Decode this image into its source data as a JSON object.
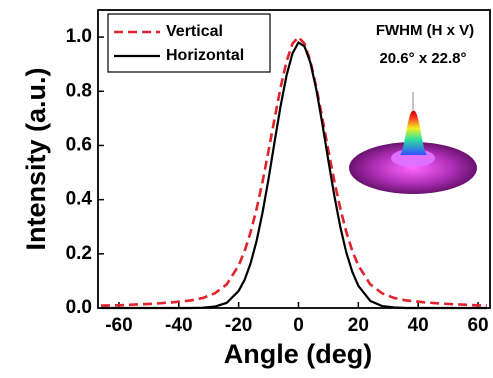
{
  "chart_data": {
    "type": "line",
    "x_label": "Angle (deg)",
    "y_label": "Intensity (a.u.)",
    "annotations": [
      "FWHM (H x V)",
      "20.6° x 22.8°"
    ],
    "x": [
      -66,
      -60,
      -54,
      -48,
      -42,
      -36,
      -32,
      -28,
      -24,
      -20,
      -18,
      -16,
      -14,
      -12,
      -10,
      -8,
      -6,
      -4,
      -2,
      0,
      2,
      4,
      6,
      8,
      10,
      12,
      14,
      16,
      18,
      20,
      24,
      28,
      32,
      36,
      42,
      48,
      54,
      60,
      63
    ],
    "series": [
      {
        "name": "Vertical",
        "color": "#e0242b",
        "dash": true,
        "values": [
          0.009,
          0.01,
          0.013,
          0.016,
          0.021,
          0.028,
          0.037,
          0.054,
          0.087,
          0.157,
          0.21,
          0.28,
          0.366,
          0.467,
          0.581,
          0.699,
          0.813,
          0.91,
          0.976,
          1.0,
          0.976,
          0.91,
          0.813,
          0.699,
          0.581,
          0.467,
          0.366,
          0.28,
          0.21,
          0.157,
          0.087,
          0.054,
          0.037,
          0.028,
          0.021,
          0.016,
          0.013,
          0.01,
          0.009
        ]
      },
      {
        "name": "Horizontal",
        "color": "#000000",
        "dash": false,
        "values": [
          0,
          0,
          0,
          0,
          0,
          0,
          0.001,
          0.005,
          0.019,
          0.063,
          0.104,
          0.165,
          0.248,
          0.353,
          0.477,
          0.613,
          0.744,
          0.858,
          0.94,
          0.98,
          0.966,
          0.905,
          0.804,
          0.678,
          0.543,
          0.413,
          0.298,
          0.204,
          0.133,
          0.082,
          0.026,
          0.007,
          0.002,
          0,
          0,
          0,
          0,
          0,
          0
        ]
      }
    ],
    "xlim": [
      -67,
      64
    ],
    "ylim": [
      0,
      1.1
    ],
    "xticks": [
      -60,
      -40,
      -20,
      0,
      20,
      40,
      60
    ],
    "yticks": [
      {
        "value": 0,
        "label": "0.0"
      },
      0.2,
      0.4,
      0.6,
      0.8,
      {
        "value": 1,
        "label": "1.0"
      }
    ]
  }
}
